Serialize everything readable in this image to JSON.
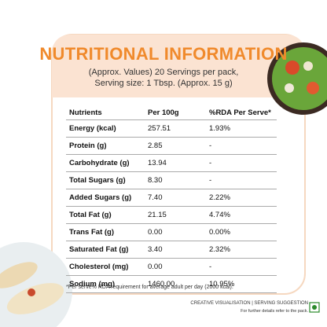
{
  "header": {
    "title": "NUTRITIONAL INFORMATION",
    "subtitle": [
      "(Approx. Values) 20 Servings per pack,",
      "Serving size: 1 Tbsp. (Approx. 15 g)"
    ]
  },
  "table": {
    "columns": [
      "Nutrients",
      "Per 100g",
      "%RDA Per Serve*"
    ],
    "rows": [
      [
        "Energy (kcal)",
        "257.51",
        "1.93%"
      ],
      [
        "Protein (g)",
        "2.85",
        "-"
      ],
      [
        "Carbohydrate (g)",
        "13.94",
        "-"
      ],
      [
        "Total Sugars (g)",
        "8.30",
        "-"
      ],
      [
        "Added Sugars (g)",
        "7.40",
        "2.22%"
      ],
      [
        "Total Fat (g)",
        "21.15",
        "4.74%"
      ],
      [
        "Trans Fat (g)",
        "0.00",
        "0.00%"
      ],
      [
        "Saturated Fat (g)",
        "3.40",
        "2.32%"
      ],
      [
        "Cholesterol (mg)",
        "0.00",
        "-"
      ],
      [
        "Sodium (mg)",
        "1460.00",
        "10.95%"
      ]
    ]
  },
  "footnote": "*Per serve% RDA requirement for average adult per day (2000 kcal).",
  "disclaimer": [
    "CREATIVE VISUALISATION | SERVING SUGGESTION",
    "For further details refer to the pack."
  ]
}
